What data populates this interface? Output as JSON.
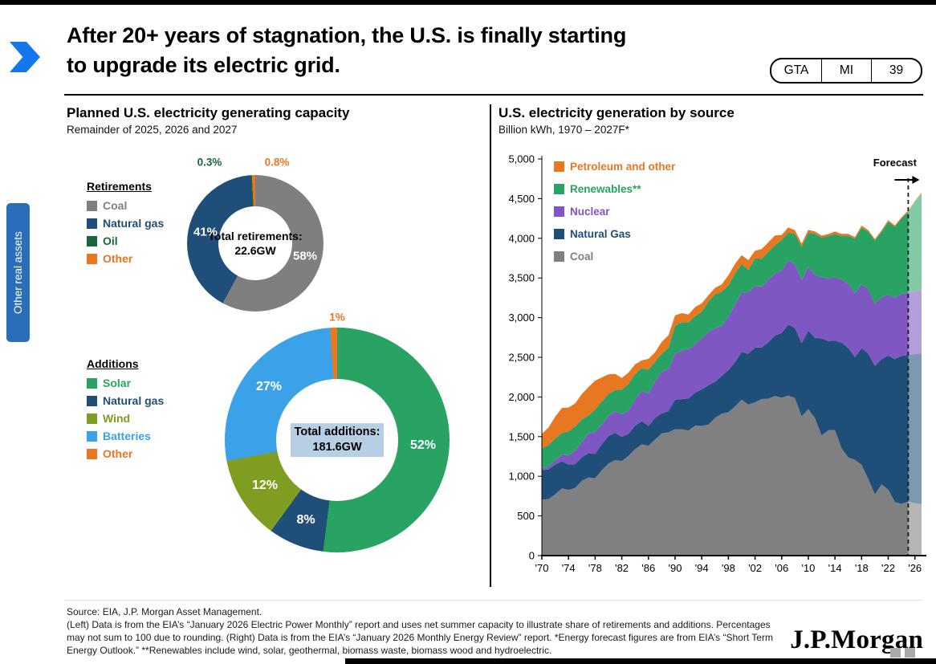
{
  "header": {
    "title_lines": [
      "After 20+ years of stagnation, the U.S. is finally starting",
      "to upgrade its electric grid."
    ],
    "badge": [
      "GTA",
      "MI",
      "39"
    ]
  },
  "sidebar": {
    "label": "Other real assets"
  },
  "left": {
    "title": "Planned U.S. electricity generating capacity",
    "subtitle": "Remainder of 2025, 2026 and 2027"
  },
  "right": {
    "title": "U.S. electricity generation by source",
    "subtitle": "Billion kWh, 1970 – 2027F*",
    "forecast_label": "Forecast"
  },
  "footer": {
    "source_text": "Source: EIA, J.P. Morgan Asset Management.\n(Left) Data is from the EIA’s “January 2026 Electric Power Monthly” report and uses net summer capacity to illustrate share of retirements and additions. Percentages may not sum to 100 due to rounding. (Right) Data is from the EIA’s “January 2026 Monthly Energy Review” report. *Energy forecast figures are from EIA’s “Short Term Energy Outlook.” **Renewables include wind, solar, geothermal, biomass waste, biomass wood and hydroelectric.",
    "logo": "J.P.Morgan"
  },
  "chart_data": [
    {
      "type": "pie",
      "title": "Retirements",
      "center_lines": [
        "Total retirements:",
        "22.6GW"
      ],
      "slices": [
        {
          "label": "Coal",
          "value": 58,
          "pct": "58%",
          "color": "#7f7f7f"
        },
        {
          "label": "Natural gas",
          "value": 41,
          "pct": "41%",
          "color": "#1f4e79"
        },
        {
          "label": "Oil",
          "value": 0.3,
          "pct": "0.3%",
          "color": "#17663c"
        },
        {
          "label": "Other",
          "value": 0.8,
          "pct": "0.8%",
          "color": "#e87722"
        }
      ]
    },
    {
      "type": "pie",
      "title": "Additions",
      "center_lines": [
        "Total additions:",
        "181.6GW"
      ],
      "slices": [
        {
          "label": "Solar",
          "value": 52,
          "pct": "52%",
          "color": "#29a364"
        },
        {
          "label": "Natural gas",
          "value": 8,
          "pct": "8%",
          "color": "#1f4e79"
        },
        {
          "label": "Wind",
          "value": 12,
          "pct": "12%",
          "color": "#7f9d20"
        },
        {
          "label": "Batteries",
          "value": 27,
          "pct": "27%",
          "color": "#3ba2ea"
        },
        {
          "label": "Other",
          "value": 1,
          "pct": "1%",
          "color": "#e87722"
        }
      ]
    },
    {
      "type": "area",
      "title": "U.S. electricity generation by source",
      "ylabel": "Billion kWh",
      "x_range": [
        1970,
        2027
      ],
      "ylim": [
        0,
        5000
      ],
      "y_ticks": [
        "0",
        "500",
        "1,000",
        "1,500",
        "2,000",
        "2,500",
        "3,000",
        "3,500",
        "4,000",
        "4,500",
        "5,000"
      ],
      "x_tick_years": [
        1970,
        1974,
        1978,
        1982,
        1986,
        1990,
        1994,
        1998,
        2002,
        2006,
        2010,
        2014,
        2018,
        2022,
        2026
      ],
      "x_tick_labels": [
        "'70",
        "'74",
        "'78",
        "'82",
        "'86",
        "'90",
        "'94",
        "'98",
        "'02",
        "'06",
        "'10",
        "'14",
        "'18",
        "'22",
        "'26"
      ],
      "forecast_start": 2025,
      "legend_position": "top-left",
      "grid": false,
      "series": [
        {
          "name": "Petroleum and other",
          "color": "#e87722",
          "values": [
            184,
            220,
            274,
            314,
            301,
            289,
            320,
            358,
            365,
            304,
            246,
            206,
            147,
            144,
            120,
            100,
            137,
            118,
            149,
            158,
            127,
            115,
            100,
            113,
            105,
            75,
            82,
            93,
            129,
            123,
            111,
            125,
            95,
            120,
            121,
            122,
            64,
            66,
            46,
            39,
            37,
            30,
            23,
            27,
            30,
            28,
            24,
            21,
            25,
            19,
            17,
            19,
            23,
            16,
            16,
            15,
            15,
            15
          ]
        },
        {
          "name": "Renewables**",
          "color": "#29a364",
          "values": [
            251,
            269,
            276,
            275,
            304,
            303,
            287,
            224,
            284,
            283,
            279,
            264,
            312,
            336,
            324,
            284,
            294,
            253,
            226,
            269,
            357,
            356,
            340,
            356,
            340,
            384,
            427,
            432,
            394,
            390,
            356,
            288,
            343,
            355,
            351,
            357,
            385,
            352,
            381,
            417,
            428,
            520,
            502,
            534,
            550,
            546,
            610,
            687,
            713,
            728,
            792,
            826,
            913,
            894,
            950,
            1020,
            1130,
            1220
          ]
        },
        {
          "name": "Nuclear",
          "color": "#7e57c2",
          "values": [
            22,
            38,
            54,
            83,
            114,
            173,
            191,
            251,
            276,
            255,
            251,
            273,
            283,
            294,
            328,
            384,
            414,
            455,
            527,
            529,
            577,
            613,
            619,
            610,
            640,
            673,
            675,
            629,
            674,
            728,
            754,
            769,
            780,
            764,
            789,
            782,
            787,
            806,
            806,
            799,
            807,
            790,
            769,
            789,
            797,
            797,
            806,
            805,
            807,
            809,
            790,
            778,
            772,
            775,
            782,
            785,
            790,
            795
          ]
        },
        {
          "name": "Natural Gas",
          "color": "#1f4e79",
          "values": [
            373,
            374,
            376,
            341,
            320,
            300,
            295,
            306,
            305,
            329,
            346,
            346,
            305,
            274,
            297,
            292,
            249,
            273,
            253,
            267,
            373,
            382,
            404,
            415,
            460,
            496,
            455,
            479,
            531,
            556,
            601,
            639,
            691,
            650,
            710,
            761,
            816,
            897,
            883,
            921,
            988,
            1013,
            1225,
            1124,
            1126,
            1333,
            1378,
            1296,
            1468,
            1582,
            1617,
            1579,
            1689,
            1802,
            1865,
            1850,
            1880,
            1900
          ]
        },
        {
          "name": "Coal",
          "color": "#808080",
          "values": [
            704,
            713,
            771,
            848,
            828,
            853,
            944,
            985,
            976,
            1075,
            1162,
            1203,
            1192,
            1259,
            1342,
            1402,
            1386,
            1464,
            1541,
            1554,
            1594,
            1591,
            1576,
            1639,
            1635,
            1653,
            1737,
            1787,
            1807,
            1881,
            1966,
            1904,
            1933,
            1974,
            1978,
            2013,
            1991,
            2016,
            1986,
            1756,
            1847,
            1733,
            1514,
            1581,
            1582,
            1352,
            1239,
            1206,
            1146,
            966,
            774,
            898,
            832,
            675,
            653,
            680,
            660,
            650
          ]
        }
      ]
    }
  ]
}
